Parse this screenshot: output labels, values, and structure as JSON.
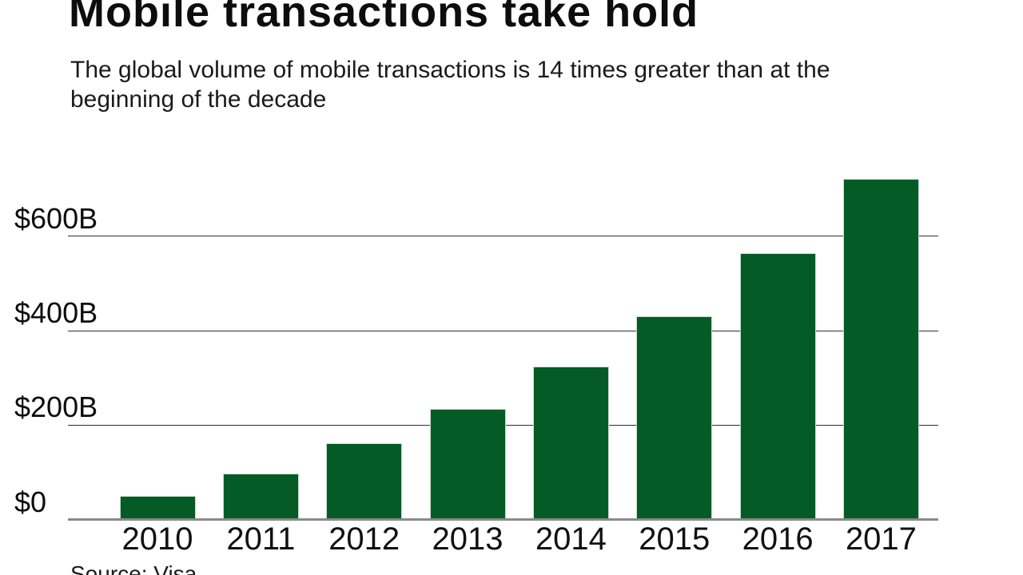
{
  "header": {
    "title": "Mobile transactions take hold",
    "subtitle_line1": "The global volume of mobile transactions is 14 times greater than at the",
    "subtitle_line2": "beginning of the decade"
  },
  "source_note": "Source: Visa",
  "colors": {
    "bar": "#055b25",
    "bar_edge": "rgba(222,236,223,0.9)",
    "gridline": "#303030",
    "axis_line": "#8a8a8a",
    "text": "#0d0d0d"
  },
  "chart_data": {
    "type": "bar",
    "title": "Mobile transactions take hold",
    "subtitle": "The global volume of mobile transactions is 14 times greater than at the beginning of the decade",
    "categories": [
      "2010",
      "2011",
      "2012",
      "2013",
      "2014",
      "2015",
      "2016",
      "2017"
    ],
    "values": [
      50,
      98,
      162,
      235,
      324,
      431,
      564,
      721
    ],
    "unit": "USD billions",
    "xlabel": "",
    "ylabel": "",
    "ytick_labels": [
      "$0",
      "$200B",
      "$400B",
      "$600B"
    ],
    "ytick_values": [
      0,
      200,
      400,
      600
    ],
    "ylim": [
      0,
      760
    ],
    "grid": true,
    "legend": false,
    "source": "Source: Visa"
  }
}
